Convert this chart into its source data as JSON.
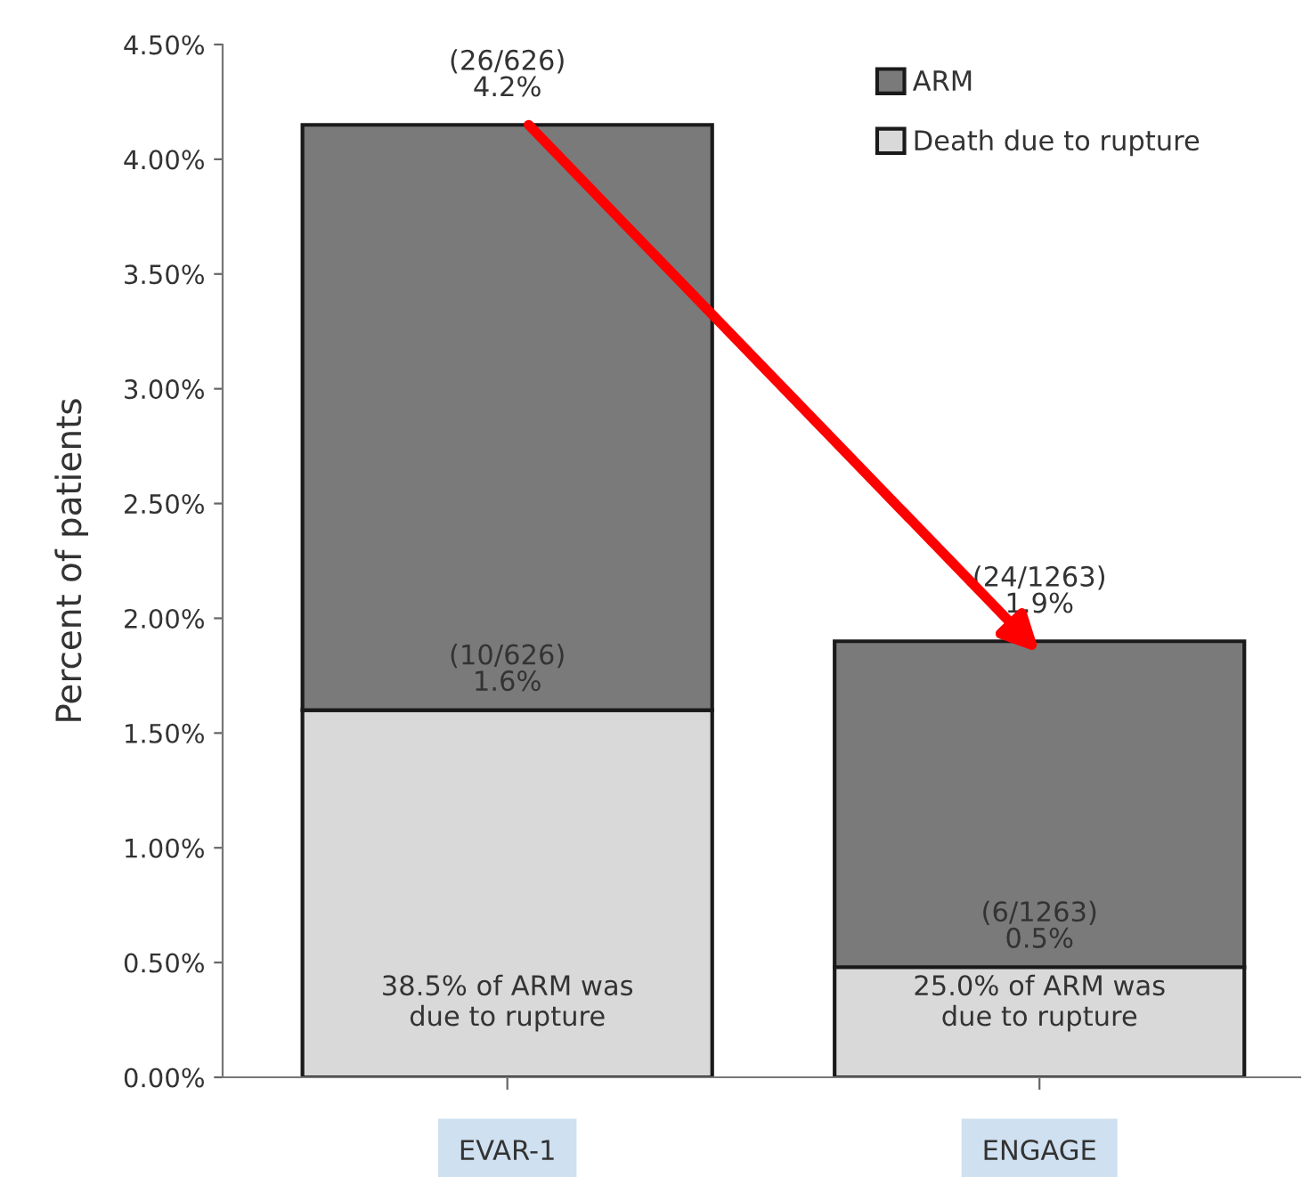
{
  "chart_data": {
    "type": "bar",
    "stacked": true,
    "ylabel": "Percent of patients",
    "categories": [
      "EVAR-1",
      "ENGAGE"
    ],
    "series": [
      {
        "name": "Death due to rupture",
        "color": "#d9d9d9",
        "values": [
          1.6,
          0.48
        ],
        "value_labels": [
          "(10/626)\n1.6%",
          "(6/1263)\n0.5%"
        ]
      },
      {
        "name": "ARM",
        "color": "#7a7a7a",
        "values": [
          2.55,
          1.42
        ]
      }
    ],
    "totals": [
      "(26/626)\n4.2%",
      "(24/1263)\n1.9%"
    ],
    "annotations": [
      "38.5% of ARM was\ndue to rupture",
      "25.0% of ARM was\ndue to rupture"
    ],
    "ylim": [
      0,
      4.5
    ],
    "yticks": [
      {
        "value": 0,
        "label": "0.00%"
      },
      {
        "value": 0.5,
        "label": "0.50%"
      },
      {
        "value": 1.0,
        "label": "1.00%"
      },
      {
        "value": 1.5,
        "label": "1.50%"
      },
      {
        "value": 2.0,
        "label": "2.00%"
      },
      {
        "value": 2.5,
        "label": "2.50%"
      },
      {
        "value": 3.0,
        "label": "3.00%"
      },
      {
        "value": 3.5,
        "label": "3.50%"
      },
      {
        "value": 4.0,
        "label": "4.00%"
      },
      {
        "value": 4.5,
        "label": "4.50%"
      }
    ],
    "grid": false,
    "legend": "top right"
  }
}
